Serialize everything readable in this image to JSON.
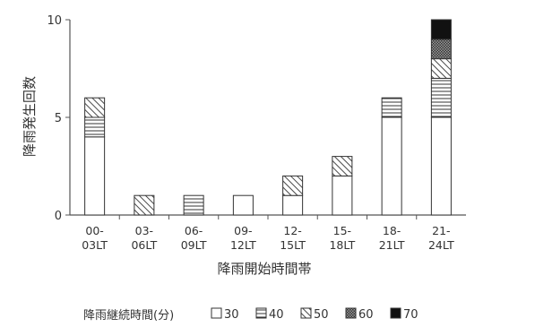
{
  "chart_data": {
    "type": "bar",
    "stacked": true,
    "categories": [
      [
        "00-",
        "03LT"
      ],
      [
        "03-",
        "06LT"
      ],
      [
        "06-",
        "09LT"
      ],
      [
        "09-",
        "12LT"
      ],
      [
        "12-",
        "15LT"
      ],
      [
        "15-",
        "18LT"
      ],
      [
        "18-",
        "21LT"
      ],
      [
        "21-",
        "24LT"
      ]
    ],
    "series": [
      {
        "name": "30",
        "pattern": "blank",
        "values": [
          4,
          0,
          0,
          1,
          1,
          2,
          5,
          5
        ]
      },
      {
        "name": "40",
        "pattern": "hlines",
        "values": [
          1,
          0,
          1,
          0,
          0,
          0,
          1,
          2
        ]
      },
      {
        "name": "50",
        "pattern": "diagonal",
        "values": [
          1,
          1,
          0,
          0,
          1,
          1,
          0,
          1
        ]
      },
      {
        "name": "60",
        "pattern": "crosshatch",
        "values": [
          0,
          0,
          0,
          0,
          0,
          0,
          0,
          1
        ]
      },
      {
        "name": "70",
        "pattern": "solid",
        "values": [
          0,
          0,
          0,
          0,
          0,
          0,
          0,
          1
        ]
      }
    ],
    "xlabel": "降雨開始時間帯",
    "ylabel": "降雨発生回数",
    "ylim": [
      0,
      10
    ],
    "yticks": [
      0,
      5,
      10
    ],
    "legend_title": "降雨継続時間(分)",
    "legend_position": "bottom"
  }
}
